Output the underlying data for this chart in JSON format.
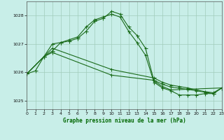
{
  "title": "Graphe pression niveau de la mer (hPa)",
  "bg_color": "#c8eee8",
  "grid_color": "#a0ccbb",
  "line_color": "#1a6b1a",
  "xlim": [
    0,
    23
  ],
  "ylim": [
    1024.7,
    1028.5
  ],
  "yticks": [
    1025,
    1026,
    1027,
    1028
  ],
  "xticks": [
    0,
    1,
    2,
    3,
    4,
    5,
    6,
    7,
    8,
    9,
    10,
    11,
    12,
    13,
    14,
    15,
    16,
    17,
    18,
    19,
    20,
    21,
    22,
    23
  ],
  "line1_x": [
    0,
    1,
    2,
    3,
    4,
    5,
    6,
    7,
    8,
    9,
    10,
    11,
    12,
    13,
    14,
    15,
    16,
    17,
    18,
    19,
    20,
    21,
    22,
    23
  ],
  "line1_y": [
    1025.95,
    1026.05,
    1026.55,
    1026.75,
    1027.05,
    1027.15,
    1027.25,
    1027.6,
    1027.85,
    1027.95,
    1028.05,
    1027.95,
    1027.45,
    1027.05,
    1026.6,
    1025.65,
    1025.45,
    1025.35,
    1025.2,
    1025.2,
    1025.2,
    1025.25,
    1025.25,
    1025.45
  ],
  "line2_x": [
    0,
    2,
    3,
    4,
    5,
    6,
    7,
    8,
    9,
    10,
    11,
    12,
    13,
    14,
    15,
    16,
    17,
    23
  ],
  "line2_y": [
    1025.95,
    1026.55,
    1027.0,
    1027.05,
    1027.1,
    1027.2,
    1027.45,
    1027.8,
    1027.9,
    1028.15,
    1028.05,
    1027.6,
    1027.3,
    1026.85,
    1025.7,
    1025.5,
    1025.38,
    1025.45
  ],
  "line3_x": [
    0,
    2,
    3,
    10,
    15,
    16,
    17,
    18,
    19,
    20,
    21,
    22,
    23
  ],
  "line3_y": [
    1025.95,
    1026.55,
    1026.85,
    1026.1,
    1025.8,
    1025.65,
    1025.55,
    1025.5,
    1025.45,
    1025.38,
    1025.32,
    1025.28,
    1025.45
  ],
  "line4_x": [
    0,
    2,
    3,
    10,
    15,
    16,
    17,
    18,
    19,
    20,
    21,
    22,
    23
  ],
  "line4_y": [
    1025.95,
    1026.55,
    1026.7,
    1025.9,
    1025.72,
    1025.58,
    1025.48,
    1025.44,
    1025.4,
    1025.35,
    1025.3,
    1025.25,
    1025.45
  ]
}
